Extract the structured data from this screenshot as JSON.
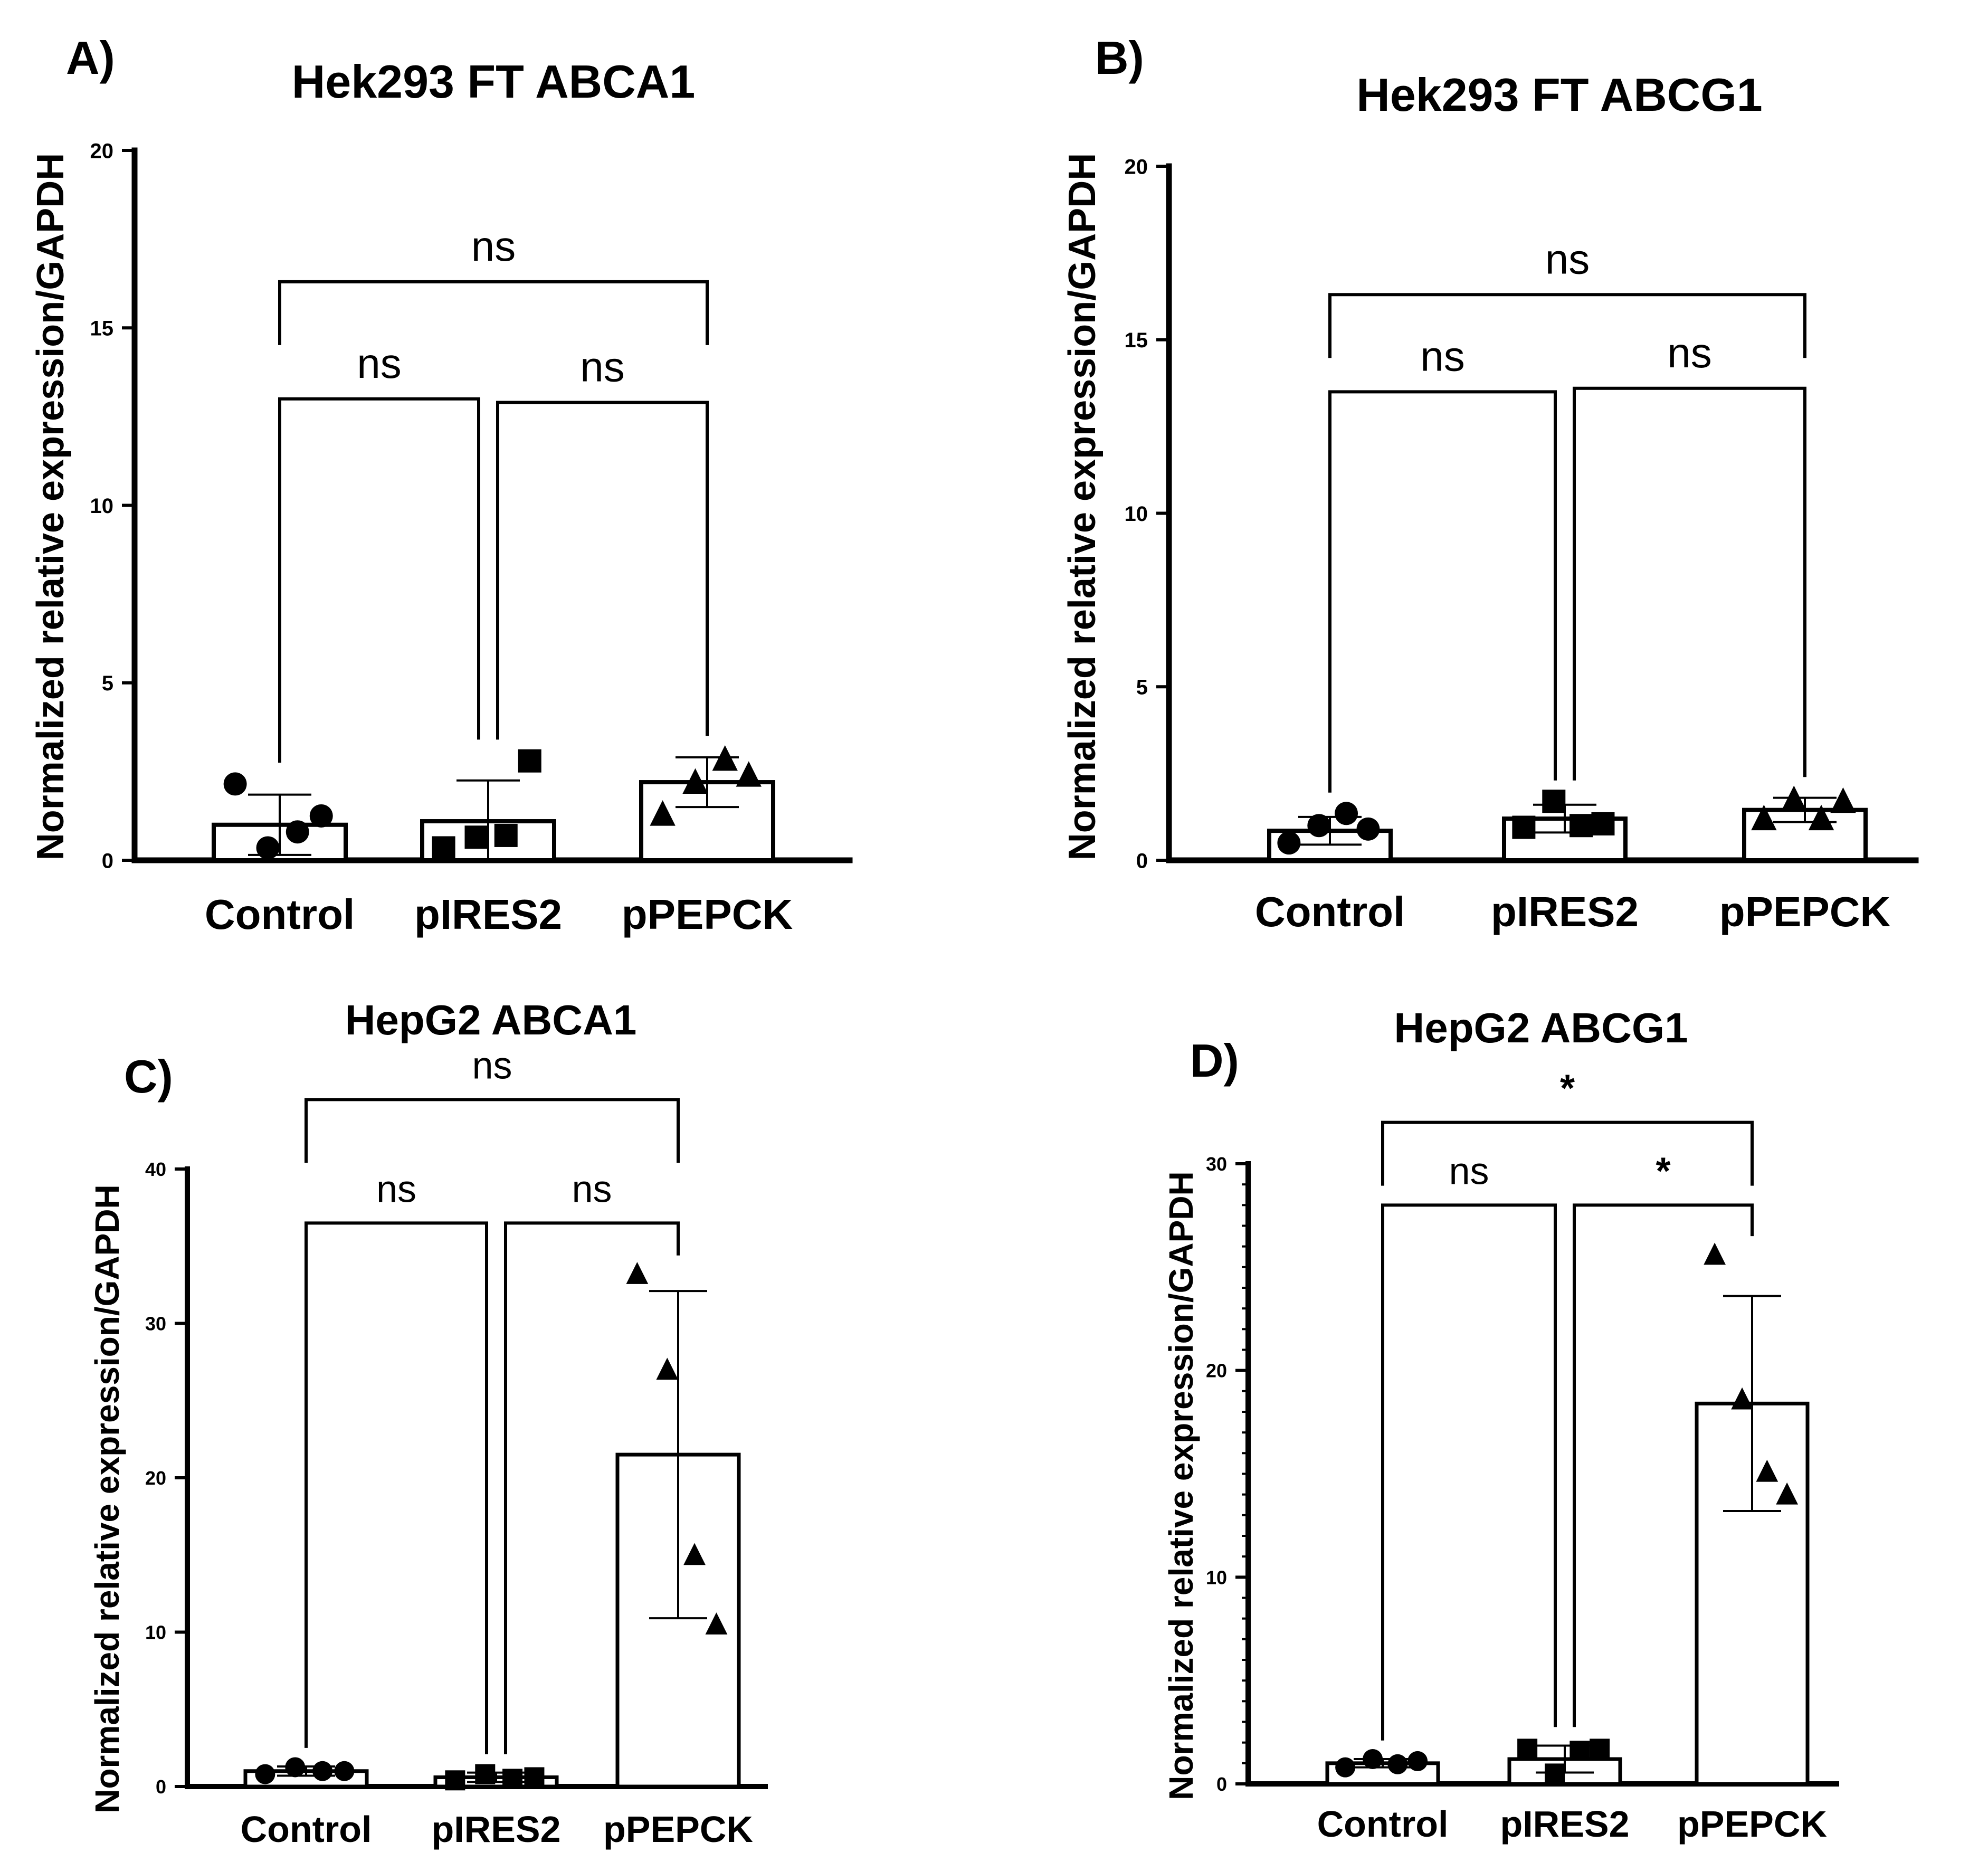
{
  "chart_data": [
    {
      "type": "bar",
      "panel_label": "A)",
      "title": "Hek293 FT ABCA1",
      "ylabel": "Normalized relative expression/GAPDH",
      "xlabel": "",
      "ylim": [
        0,
        20
      ],
      "yticks": [
        "0",
        "5",
        "10",
        "15",
        "20"
      ],
      "minor_ticks": false,
      "categories": [
        "Control",
        "pIRES2",
        "pPEPCK"
      ],
      "means": [
        1.0,
        1.1,
        2.2
      ],
      "errors": [
        0.85,
        1.15,
        0.7
      ],
      "points": [
        [
          2.15,
          0.35,
          0.8,
          1.25
        ],
        [
          0.35,
          0.65,
          0.7,
          2.8
        ],
        [
          1.3,
          2.2,
          2.85,
          2.4
        ]
      ],
      "markers": [
        "circle",
        "square",
        "triangle"
      ],
      "comparisons": [
        {
          "from": 0,
          "to": 1,
          "label": "ns",
          "y": 13.0
        },
        {
          "from": 1,
          "to": 2,
          "label": "ns",
          "y": 12.9
        },
        {
          "from": 0,
          "to": 2,
          "label": "ns",
          "y": 16.3
        }
      ]
    },
    {
      "type": "bar",
      "panel_label": "B)",
      "title": "Hek293 FT ABCG1",
      "ylabel": "Normalized relative expression/GAPDH",
      "xlabel": "",
      "ylim": [
        0,
        20
      ],
      "yticks": [
        "0",
        "5",
        "10",
        "15",
        "20"
      ],
      "minor_ticks": false,
      "categories": [
        "Control",
        "pIRES2",
        "pPEPCK"
      ],
      "means": [
        0.85,
        1.2,
        1.45
      ],
      "errors": [
        0.4,
        0.4,
        0.35
      ],
      "points": [
        [
          0.5,
          1.0,
          1.35,
          0.9
        ],
        [
          0.95,
          1.7,
          1.0,
          1.05
        ],
        [
          1.2,
          1.75,
          1.2,
          1.7
        ]
      ],
      "markers": [
        "circle",
        "square",
        "triangle"
      ],
      "comparisons": [
        {
          "from": 0,
          "to": 1,
          "label": "ns",
          "y": 13.5
        },
        {
          "from": 1,
          "to": 2,
          "label": "ns",
          "y": 13.6
        },
        {
          "from": 0,
          "to": 2,
          "label": "ns",
          "y": 16.3
        }
      ]
    },
    {
      "type": "bar",
      "panel_label": "C)",
      "title": "HepG2 ABCA1",
      "ylabel": "Normalized relative expression/GAPDH",
      "xlabel": "",
      "ylim": [
        0,
        40
      ],
      "yticks": [
        "0",
        "10",
        "20",
        "30",
        "40"
      ],
      "minor_ticks": false,
      "categories": [
        "Control",
        "pIRES2",
        "pPEPCK"
      ],
      "means": [
        1.0,
        0.6,
        21.5
      ],
      "errors": [
        0.3,
        0.3,
        10.6
      ],
      "points": [
        [
          0.8,
          1.25,
          1.0,
          1.0
        ],
        [
          0.4,
          0.8,
          0.5,
          0.6
        ],
        [
          33.2,
          27.0,
          15.0,
          10.5
        ]
      ],
      "markers": [
        "circle",
        "square",
        "triangle"
      ],
      "comparisons": [
        {
          "from": 0,
          "to": 1,
          "label": "ns",
          "y": 36.5
        },
        {
          "from": 1,
          "to": 2,
          "label": "ns",
          "y": 36.5
        },
        {
          "from": 0,
          "to": 2,
          "label": "ns",
          "y": 44.5
        }
      ]
    },
    {
      "type": "bar",
      "panel_label": "D)",
      "title": "HepG2 ABCG1",
      "ylabel": "Normalized relative expression/GAPDH",
      "xlabel": "",
      "ylim": [
        0,
        30
      ],
      "yticks": [
        "0",
        "10",
        "20",
        "30"
      ],
      "minor_ticks": true,
      "categories": [
        "Control",
        "pIRES2",
        "pPEPCK"
      ],
      "means": [
        1.0,
        1.2,
        18.4
      ],
      "errors": [
        0.2,
        0.65,
        5.2
      ],
      "points": [
        [
          0.8,
          1.2,
          0.95,
          1.1
        ],
        [
          1.7,
          0.5,
          1.6,
          1.7
        ],
        [
          25.6,
          18.6,
          15.1,
          14.0
        ]
      ],
      "markers": [
        "circle",
        "square",
        "triangle"
      ],
      "comparisons": [
        {
          "from": 0,
          "to": 1,
          "label": "ns",
          "y": 28.0
        },
        {
          "from": 1,
          "to": 2,
          "label": "*",
          "y": 28.0
        },
        {
          "from": 0,
          "to": 2,
          "label": "*",
          "y": 32.0
        }
      ]
    }
  ]
}
